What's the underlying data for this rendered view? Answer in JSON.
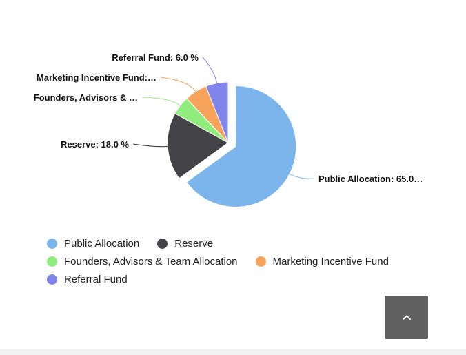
{
  "chart_data": {
    "type": "pie",
    "title": "",
    "slices": [
      {
        "name": "Public Allocation",
        "value": 65.0,
        "label": "Public Allocation: 65.0…",
        "color": "#7cb5ec",
        "exploded": true
      },
      {
        "name": "Reserve",
        "value": 18.0,
        "label": "Reserve: 18.0 %",
        "color": "#434348",
        "exploded": false
      },
      {
        "name": "Founders, Advisors & Team Allocation",
        "value": 5.0,
        "label": "Founders, Advisors & …",
        "color": "#90ed7d",
        "exploded": false
      },
      {
        "name": "Marketing Incentive Fund",
        "value": 6.0,
        "label": "Marketing Incentive Fund:…",
        "color": "#f7a35c",
        "exploded": false
      },
      {
        "name": "Referral Fund",
        "value": 6.0,
        "label": "Referral Fund: 6.0 %",
        "color": "#8085e9",
        "exploded": false
      }
    ],
    "legend_placement": "bottom"
  },
  "legend": {
    "items": [
      {
        "label": "Public Allocation",
        "color": "#7cb5ec"
      },
      {
        "label": "Reserve",
        "color": "#434348"
      },
      {
        "label": "Founders, Advisors & Team Allocation",
        "color": "#90ed7d"
      },
      {
        "label": "Marketing Incentive Fund",
        "color": "#f7a35c"
      },
      {
        "label": "Referral Fund",
        "color": "#8085e9"
      }
    ]
  },
  "scroll_top": {
    "icon": "chevron-up-icon"
  }
}
